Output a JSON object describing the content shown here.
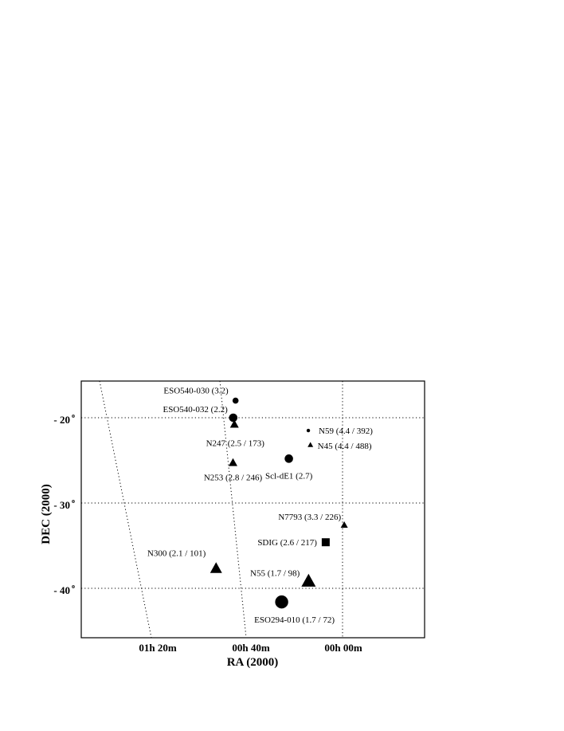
{
  "chart_data": {
    "type": "scatter",
    "xlabel": "RA (2000)",
    "ylabel": "DEC (2000)",
    "x_ticks": [
      "01h 20m",
      "00h 40m",
      "00h 00m"
    ],
    "y_ticks": [
      "- 20",
      "- 30",
      "- 40"
    ],
    "y_tick_degree": "o",
    "grid": true,
    "points": [
      {
        "label": "ESO540-030 (3.2)",
        "marker": "circle",
        "ra_min": 46.5,
        "dec": -18.0,
        "size": "small"
      },
      {
        "label": "ESO540-032 (2.2)",
        "marker": "circle",
        "ra_min": 47.5,
        "dec": -20.0,
        "size": "medium"
      },
      {
        "label": "N247 (2.5 / 173)",
        "marker": "triangle",
        "ra_min": 47.0,
        "dec": -20.8,
        "size": "medium"
      },
      {
        "label": "N253 (2.8 / 246)",
        "marker": "triangle",
        "ra_min": 47.6,
        "dec": -25.3,
        "size": "medium"
      },
      {
        "label": "Scl-dE1 (2.7)",
        "marker": "circle",
        "ra_min": 23.5,
        "dec": -24.8,
        "size": "medium"
      },
      {
        "label": "N59 (4.4 / 392)",
        "marker": "circle",
        "ra_min": 15.1,
        "dec": -21.5,
        "size": "tiny"
      },
      {
        "label": "N45 (4.4 / 488)",
        "marker": "triangle",
        "ra_min": 14.2,
        "dec": -23.2,
        "size": "tiny"
      },
      {
        "label": "N7793 (3.3 / 226)",
        "marker": "triangle",
        "ra_min": -0.4,
        "dec": -32.6,
        "size": "small"
      },
      {
        "label": "SDIG (2.6 / 217)",
        "marker": "square",
        "ra_min": 7.6,
        "dec": -34.6,
        "size": "medium"
      },
      {
        "label": "N300 (2.1 / 101)",
        "marker": "triangle",
        "ra_min": 54.9,
        "dec": -37.7,
        "size": "large"
      },
      {
        "label": "N55 (1.7 / 98)",
        "marker": "triangle",
        "ra_min": 15.0,
        "dec": -39.2,
        "size": "xlarge"
      },
      {
        "label": "ESO294-010 (1.7 / 72)",
        "marker": "circle",
        "ra_min": 26.6,
        "dec": -41.6,
        "size": "xlarge"
      }
    ]
  }
}
